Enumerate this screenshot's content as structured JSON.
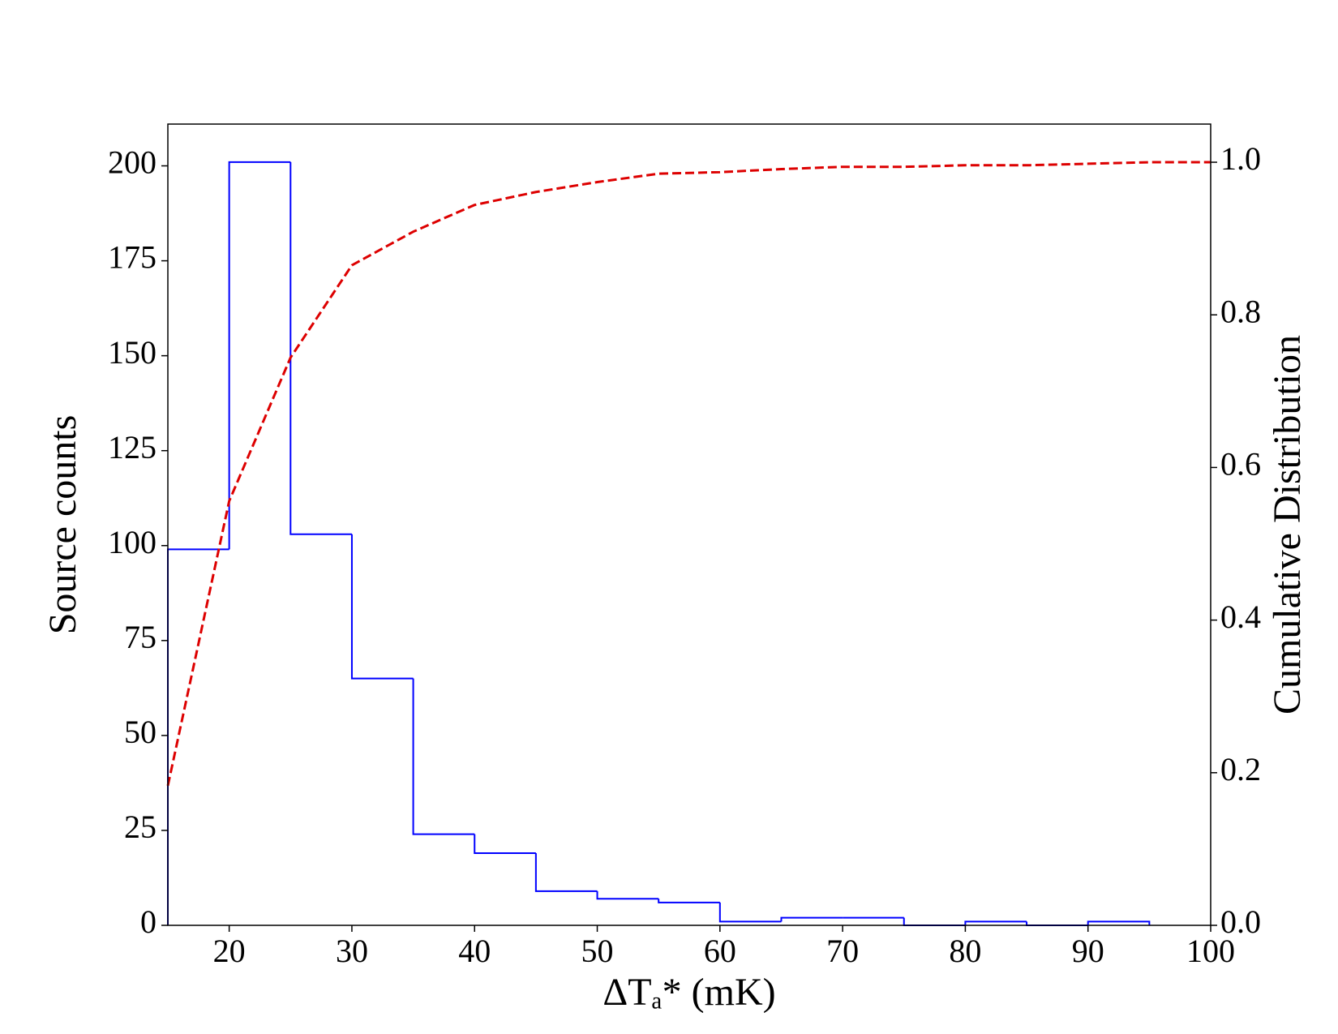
{
  "chart_data": {
    "type": "histogram",
    "xlabel": "ΔTₐ* (mK)",
    "ylabel": "Source counts",
    "y2label": "Cumulative Distribution",
    "bins": [
      15,
      20,
      25,
      30,
      35,
      40,
      45,
      50,
      55,
      60,
      65,
      70,
      75,
      80,
      85,
      90,
      95
    ],
    "counts": [
      99,
      201,
      103,
      65,
      24,
      19,
      9,
      7,
      6,
      1,
      2,
      2,
      0,
      1,
      0,
      1
    ],
    "color": "#0000ff",
    "cumulative": {
      "type": "line",
      "axis": "y2",
      "color": "#dd0000",
      "linestyle": "dashed",
      "x": [
        15,
        20,
        25,
        30,
        35,
        40,
        45,
        50,
        55,
        60,
        65,
        70,
        75,
        80,
        85,
        90,
        95,
        100
      ],
      "values": [
        0.183,
        0.556,
        0.744,
        0.865,
        0.909,
        0.944,
        0.961,
        0.974,
        0.985,
        0.987,
        0.991,
        0.994,
        0.994,
        0.996,
        0.996,
        0.998,
        1.0,
        1.0
      ]
    },
    "xlim": [
      15,
      100
    ],
    "xticks": [
      20,
      30,
      40,
      50,
      60,
      70,
      80,
      90,
      100
    ],
    "ylim": [
      0,
      211
    ],
    "yticks": [
      0,
      25,
      50,
      75,
      100,
      125,
      150,
      175,
      200
    ],
    "y2lim": [
      0,
      1.05
    ],
    "y2ticks": [
      {
        "value": 0,
        "label": "0.0"
      },
      {
        "value": 0.2,
        "label": "0.2"
      },
      {
        "value": 0.4,
        "label": "0.4"
      },
      {
        "value": 0.6,
        "label": "0.6"
      },
      {
        "value": 0.8,
        "label": "0.8"
      },
      {
        "value": 1,
        "label": "1.0"
      }
    ],
    "grid": false
  }
}
